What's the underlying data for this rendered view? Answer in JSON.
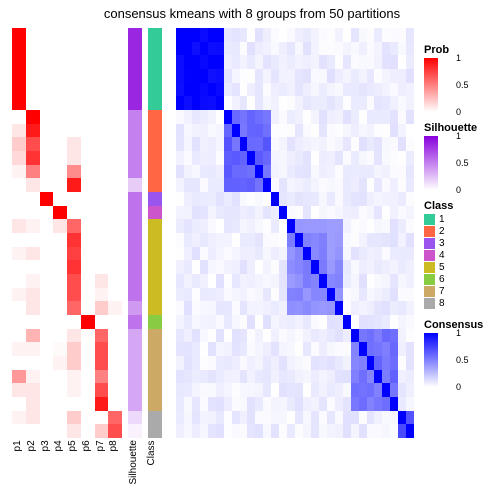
{
  "title": "consensus kmeans with 8 groups from 50 partitions",
  "dims": {
    "n": 30
  },
  "colors": {
    "prob_scale": [
      "#ffffff",
      "#ff0000"
    ],
    "silhouette_scale": [
      "#ffffff",
      "#8800dd"
    ],
    "consensus_scale": [
      "#ffffff",
      "#0000ff"
    ],
    "class": {
      "1": "#33cc99",
      "2": "#ff6644",
      "3": "#9955ee",
      "4": "#cc55cc",
      "5": "#ccbb22",
      "6": "#88cc44",
      "7": "#ccaa66",
      "8": "#aaaaaa"
    },
    "bg": "#ffffff"
  },
  "fonts": {
    "title_size": 13,
    "label_size": 10,
    "legend_title_size": 11
  },
  "x_labels_prob": [
    "p1",
    "p2",
    "p3",
    "p4",
    "p5",
    "p6",
    "p7",
    "p8"
  ],
  "x_labels_ann": [
    "Silhouette",
    "Class"
  ],
  "class_by_row": [
    1,
    1,
    1,
    1,
    1,
    1,
    2,
    2,
    2,
    2,
    2,
    2,
    3,
    4,
    5,
    5,
    5,
    5,
    5,
    5,
    5,
    6,
    7,
    7,
    7,
    7,
    7,
    7,
    8,
    8
  ],
  "sil_by_row": [
    0.85,
    0.85,
    0.85,
    0.85,
    0.85,
    0.85,
    0.5,
    0.5,
    0.5,
    0.5,
    0.5,
    0.2,
    0.55,
    0.55,
    0.55,
    0.55,
    0.55,
    0.55,
    0.55,
    0.55,
    0.4,
    0.55,
    0.35,
    0.35,
    0.35,
    0.35,
    0.35,
    0.35,
    0.15,
    0.05
  ],
  "prob_matrix_cols": [
    [
      1,
      1,
      1,
      1,
      1,
      1,
      0,
      0.1,
      0.2,
      0.15,
      0.05,
      0,
      0,
      0,
      0.1,
      0,
      0.05,
      0,
      0,
      0.05,
      0,
      0,
      0,
      0.05,
      0,
      0.4,
      0.1,
      0,
      0.05,
      0
    ],
    [
      0,
      0,
      0,
      0,
      0,
      0,
      1,
      0.9,
      0.7,
      0.8,
      0.5,
      0.1,
      0,
      0,
      0.05,
      0,
      0.1,
      0,
      0.05,
      0.1,
      0.1,
      0,
      0.3,
      0.05,
      0,
      0.05,
      0.1,
      0.1,
      0.1,
      0
    ],
    [
      0,
      0,
      0,
      0,
      0,
      0,
      0,
      0,
      0,
      0,
      0,
      0,
      1,
      0,
      0,
      0,
      0,
      0,
      0,
      0,
      0,
      0,
      0,
      0,
      0,
      0,
      0,
      0,
      0,
      0
    ],
    [
      0,
      0,
      0,
      0,
      0,
      0,
      0,
      0,
      0,
      0,
      0,
      0,
      0,
      1,
      0.1,
      0,
      0,
      0,
      0,
      0,
      0,
      0,
      0,
      0.02,
      0.05,
      0,
      0,
      0,
      0,
      0
    ],
    [
      0,
      0,
      0,
      0,
      0,
      0,
      0,
      0,
      0.1,
      0.1,
      0.45,
      0.9,
      0,
      0,
      0.6,
      0.8,
      0.75,
      0.8,
      0.7,
      0.7,
      0.6,
      0,
      0.1,
      0.2,
      0.2,
      0.05,
      0.05,
      0,
      0.2,
      0.1
    ],
    [
      0,
      0,
      0,
      0,
      0,
      0,
      0,
      0,
      0,
      0,
      0,
      0,
      0,
      0,
      0,
      0,
      0,
      0,
      0,
      0,
      0,
      1,
      0,
      0,
      0,
      0,
      0,
      0,
      0,
      0
    ],
    [
      0,
      0,
      0,
      0,
      0,
      0,
      0,
      0,
      0,
      0,
      0,
      0,
      0,
      0,
      0,
      0,
      0,
      0,
      0.1,
      0.05,
      0.2,
      0,
      0.6,
      0.7,
      0.7,
      0.5,
      0.7,
      0.9,
      0,
      0.2
    ],
    [
      0,
      0,
      0,
      0,
      0,
      0,
      0,
      0,
      0,
      0,
      0,
      0,
      0,
      0,
      0,
      0,
      0,
      0,
      0,
      0,
      0.05,
      0,
      0,
      0,
      0,
      0,
      0,
      0,
      0.6,
      0.7
    ]
  ],
  "consensus_block_values": {
    "1": 1.0,
    "2": 0.6,
    "3": 0.9,
    "4": 0.9,
    "5": 0.45,
    "6": 0.9,
    "7": 0.55,
    "8": 0.7
  },
  "consensus_offdiag_noise": 0.12,
  "legends": {
    "prob": {
      "title": "Prob",
      "ticks": [
        1,
        0.5,
        0
      ]
    },
    "silhouette": {
      "title": "Silhouette",
      "ticks": [
        1,
        0.5,
        0
      ]
    },
    "class": {
      "title": "Class",
      "items": [
        "1",
        "2",
        "3",
        "4",
        "5",
        "6",
        "7",
        "8"
      ]
    },
    "consensus": {
      "title": "Consensus",
      "ticks": [
        1,
        0.5,
        0
      ]
    }
  }
}
